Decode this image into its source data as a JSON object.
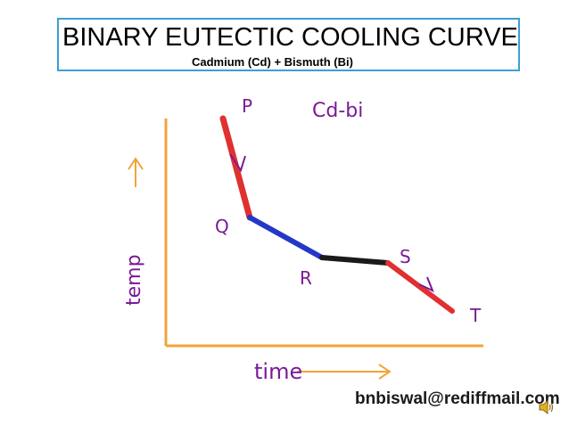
{
  "title": "BINARY EUTECTIC COOLING CURVE",
  "subtitle": "Cadmium (Cd) + Bismuth (Bi)",
  "diagram": {
    "points": {
      "p": "P",
      "q": "Q",
      "r": "R",
      "s": "S",
      "t": "T"
    },
    "annotation": "Cd-bi",
    "y_axis_label": "temp",
    "x_axis_label": "time",
    "colors": {
      "axes": "#f2a33a",
      "segment_pq": "#e03030",
      "segment_qr": "#2438c8",
      "segment_rs": "#1a1a1a",
      "segment_st": "#e03030",
      "handwriting": "#7a1a96"
    }
  },
  "footer": {
    "email": "bnbiswal@rediffmail.com",
    "audio_icon": "speaker-icon"
  }
}
